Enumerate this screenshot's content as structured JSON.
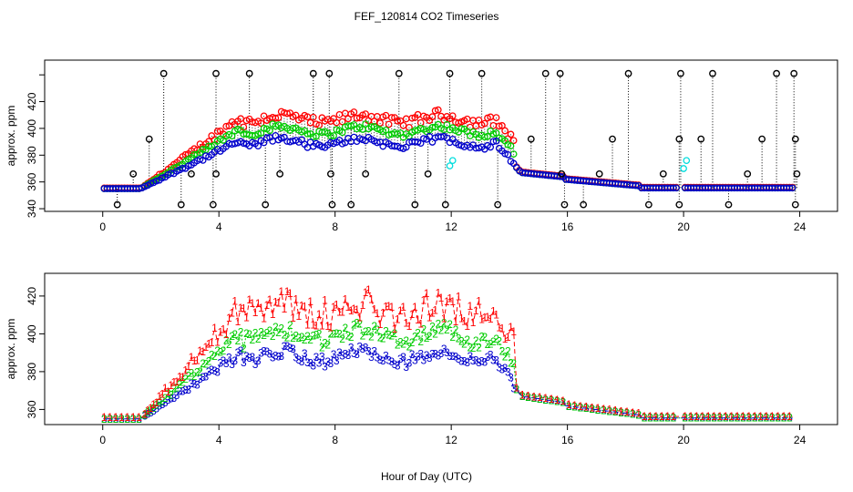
{
  "title": "FEF_120814  CO2 Timeseries",
  "xlabel": "Hour of Day (UTC)",
  "chart_data": [
    {
      "type": "scatter",
      "name": "top",
      "ylabel": "approx. ppm",
      "xlim": [
        -2,
        25.3
      ],
      "ylim": [
        338,
        451
      ],
      "xticks": [
        0,
        4,
        8,
        12,
        16,
        20,
        24
      ],
      "xtick_labels": [
        "0",
        "4",
        "8",
        "12",
        "16",
        "20",
        "24"
      ],
      "yticks": [
        340,
        360,
        380,
        400,
        420,
        440
      ],
      "ytick_labels": [
        "340",
        "360",
        "380",
        "400",
        "420",
        ""
      ],
      "series_colors": {
        "black": "#000000",
        "red": "#ff0000",
        "green": "#00cc00",
        "blue": "#0000cc",
        "cyan": "#00dddd"
      },
      "black_spikes_high": [
        [
          2.1,
          441
        ],
        [
          3.9,
          441
        ],
        [
          5.05,
          441
        ],
        [
          7.25,
          441
        ],
        [
          7.8,
          441
        ],
        [
          10.2,
          441
        ],
        [
          11.95,
          441
        ],
        [
          13.05,
          441
        ],
        [
          15.25,
          441
        ],
        [
          15.75,
          441
        ],
        [
          18.1,
          441
        ],
        [
          19.9,
          441
        ],
        [
          21.0,
          441
        ],
        [
          23.2,
          441
        ],
        [
          23.8,
          441
        ]
      ],
      "black_spikes_low": [
        [
          0.5,
          343
        ],
        [
          2.7,
          343
        ],
        [
          3.8,
          343
        ],
        [
          5.6,
          343
        ],
        [
          7.9,
          343
        ],
        [
          8.55,
          343
        ],
        [
          10.75,
          343
        ],
        [
          11.8,
          343
        ],
        [
          13.6,
          343
        ],
        [
          15.9,
          343
        ],
        [
          16.55,
          343
        ],
        [
          18.8,
          343
        ],
        [
          19.85,
          343
        ],
        [
          21.55,
          343
        ],
        [
          23.85,
          343
        ]
      ],
      "black_mid": [
        [
          1.05,
          366
        ],
        [
          1.6,
          392
        ],
        [
          3.05,
          366
        ],
        [
          3.9,
          366
        ],
        [
          6.1,
          366
        ],
        [
          7.85,
          366
        ],
        [
          9.05,
          366
        ],
        [
          11.2,
          366
        ],
        [
          14.75,
          392
        ],
        [
          15.8,
          366
        ],
        [
          17.1,
          366
        ],
        [
          17.55,
          392
        ],
        [
          19.3,
          366
        ],
        [
          19.85,
          392
        ],
        [
          20.6,
          392
        ],
        [
          22.2,
          366
        ],
        [
          22.7,
          392
        ],
        [
          23.9,
          366
        ],
        [
          23.85,
          392
        ]
      ],
      "cyan_points": [
        [
          11.95,
          372
        ],
        [
          12.05,
          376
        ],
        [
          20.0,
          370
        ],
        [
          20.1,
          376
        ]
      ]
    },
    {
      "type": "scatter",
      "name": "bottom",
      "ylabel": "approx. ppm",
      "xlim": [
        -2,
        25.3
      ],
      "ylim": [
        352,
        432
      ],
      "xticks": [
        0,
        4,
        8,
        12,
        16,
        20,
        24
      ],
      "xtick_labels": [
        "0",
        "4",
        "8",
        "12",
        "16",
        "20",
        "24"
      ],
      "yticks": [
        360,
        380,
        400,
        420
      ],
      "ytick_labels": [
        "360",
        "380",
        "400",
        "420"
      ],
      "symbols": [
        "1",
        "2",
        "3"
      ],
      "symbol_colors": [
        "#ff0000",
        "#00cc00",
        "#0000cc"
      ]
    }
  ]
}
